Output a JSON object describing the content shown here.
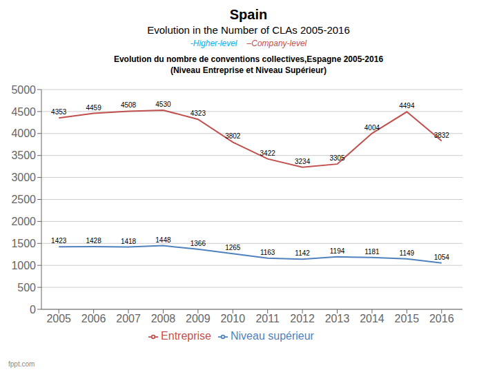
{
  "chart_data": {
    "type": "line",
    "title": "Spain",
    "subtitle": "Evolution in the Number of CLAs 2005-2016",
    "annotations": [
      {
        "text": "-Higher-level",
        "color": "#00b0f0"
      },
      {
        "text": "–Company-level",
        "color": "#c0504d"
      },
      {
        "text": "Evolution du nombre de conventions collectives,Espagne 2005-2016"
      },
      {
        "text": "(Niveau Entreprise et Niveau Supérieur)"
      },
      {
        "text": "fppt.com"
      }
    ],
    "x": [
      2005,
      2006,
      2007,
      2008,
      2009,
      2010,
      2011,
      2012,
      2013,
      2014,
      2015,
      2016
    ],
    "series": [
      {
        "name": "Niveau supérieur",
        "color": "#4f81bd",
        "values": [
          1423,
          1428,
          1418,
          1448,
          1366,
          1265,
          1163,
          1142,
          1194,
          1181,
          1149,
          1054
        ]
      },
      {
        "name": "Entreprise",
        "color": "#c0504d",
        "values": [
          4353,
          4459,
          4508,
          4530,
          4323,
          3802,
          3422,
          3234,
          3305,
          4004,
          4494,
          3832
        ]
      }
    ],
    "xlim": [
      2004.5,
      2016.6
    ],
    "xticks": [
      2005,
      2006,
      2007,
      2008,
      2009,
      2010,
      2011,
      2012,
      2013,
      2014,
      2015,
      2016
    ],
    "ylim": [
      0,
      5000
    ],
    "yticks": [
      0,
      500,
      1000,
      1500,
      2000,
      2500,
      3000,
      3500,
      4000,
      4500,
      5000
    ],
    "grid": true,
    "legend": "bottom",
    "data_labels": true
  }
}
